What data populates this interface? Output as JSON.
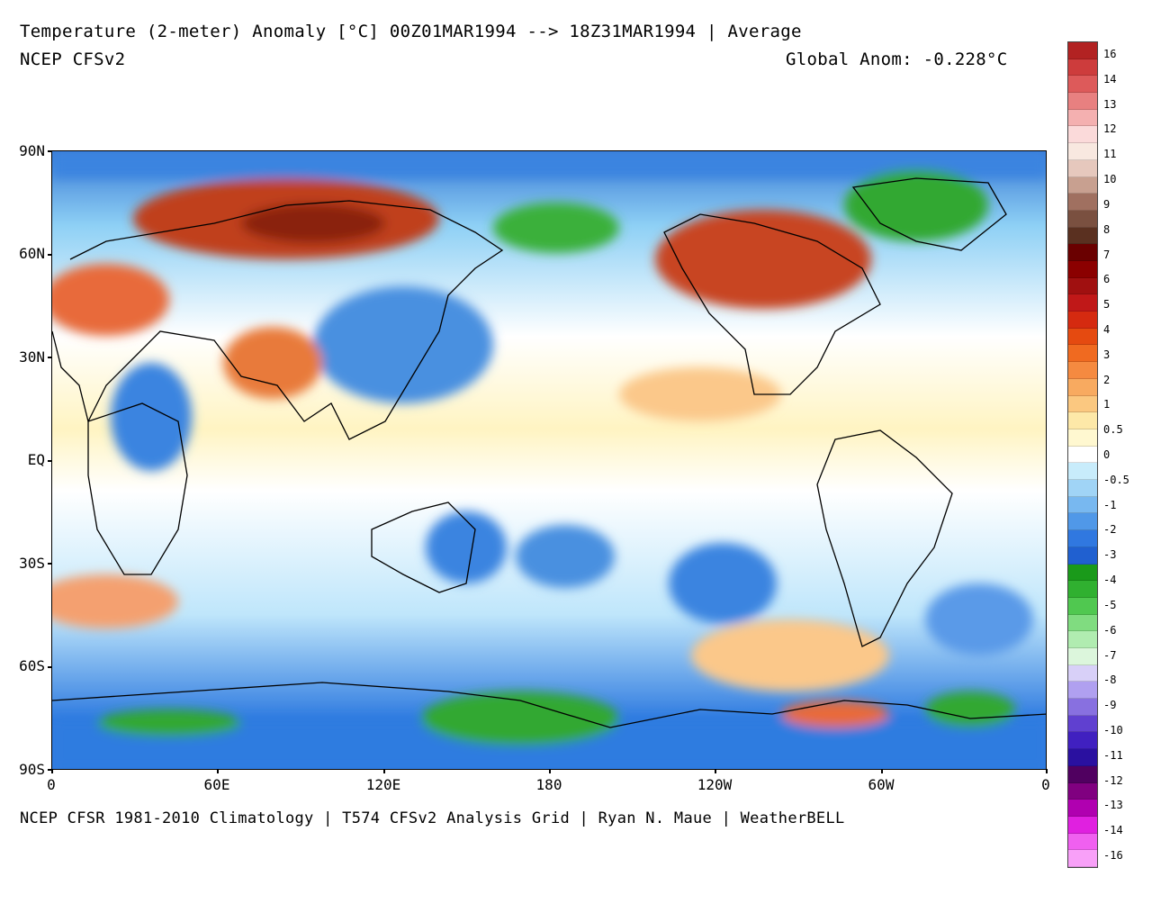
{
  "header": {
    "title": "Temperature (2-meter) Anomaly  [°C] 00Z01MAR1994 --> 18Z31MAR1994 | Average",
    "model": "NCEP CFSv2",
    "global_anom": "Global Anom: -0.228°C"
  },
  "footer": {
    "credits": "NCEP CFSR 1981-2010 Climatology | T574 CFSv2 Analysis Grid | Ryan N. Maue | WeatherBELL"
  },
  "axes": {
    "lat_labels": [
      "90N",
      "60N",
      "30N",
      "EQ",
      "30S",
      "60S",
      "90S"
    ],
    "lon_labels": [
      "0",
      "60E",
      "120E",
      "180",
      "120W",
      "60W",
      "0"
    ]
  },
  "colorbar": {
    "labels": [
      "16",
      "14",
      "13",
      "12",
      "11",
      "10",
      "9",
      "8",
      "7",
      "6",
      "5",
      "4",
      "3",
      "2",
      "1",
      "0.5",
      "0",
      "-0.5",
      "-1",
      "-2",
      "-3",
      "-4",
      "-5",
      "-6",
      "-7",
      "-8",
      "-9",
      "-10",
      "-11",
      "-12",
      "-13",
      "-14",
      "-16"
    ],
    "colors": [
      "#b22222",
      "#cd3c3c",
      "#dd5a5a",
      "#e88080",
      "#f4b0b0",
      "#fbdada",
      "#f8e8e0",
      "#e6c8bd",
      "#c8a090",
      "#a07060",
      "#7a5040",
      "#5a3020",
      "#6a0000",
      "#8b0000",
      "#a01010",
      "#c01818",
      "#d52a10",
      "#e54a10",
      "#f06a20",
      "#f58a40",
      "#f8aa60",
      "#fbc880",
      "#fde8a8",
      "#fff8d0",
      "#ffffff",
      "#c8ecfb",
      "#a0d4f6",
      "#78b8f0",
      "#5098e8",
      "#3078e0",
      "#2060d0",
      "#1a9a1a",
      "#30b030",
      "#50c850",
      "#80dc80",
      "#b0ecb0",
      "#dcf6dc",
      "#d8d0f8",
      "#b0a0f0",
      "#8870e0",
      "#6040d0",
      "#4020c0",
      "#2a10a0",
      "#500060",
      "#800080",
      "#b000b0",
      "#e020e0",
      "#f060f0",
      "#f8a0f8"
    ]
  },
  "legend": {
    "anomaly_colors": {
      "strong_warm": "#b8321a",
      "warm": "#e86a3a",
      "mild_warm": "#fbc88a",
      "neutral": "#ffffff",
      "mild_cold": "#a8dcf8",
      "cold": "#3a84e0",
      "very_cold": "#28a028",
      "extreme_cold": "#8a6ad8"
    }
  }
}
